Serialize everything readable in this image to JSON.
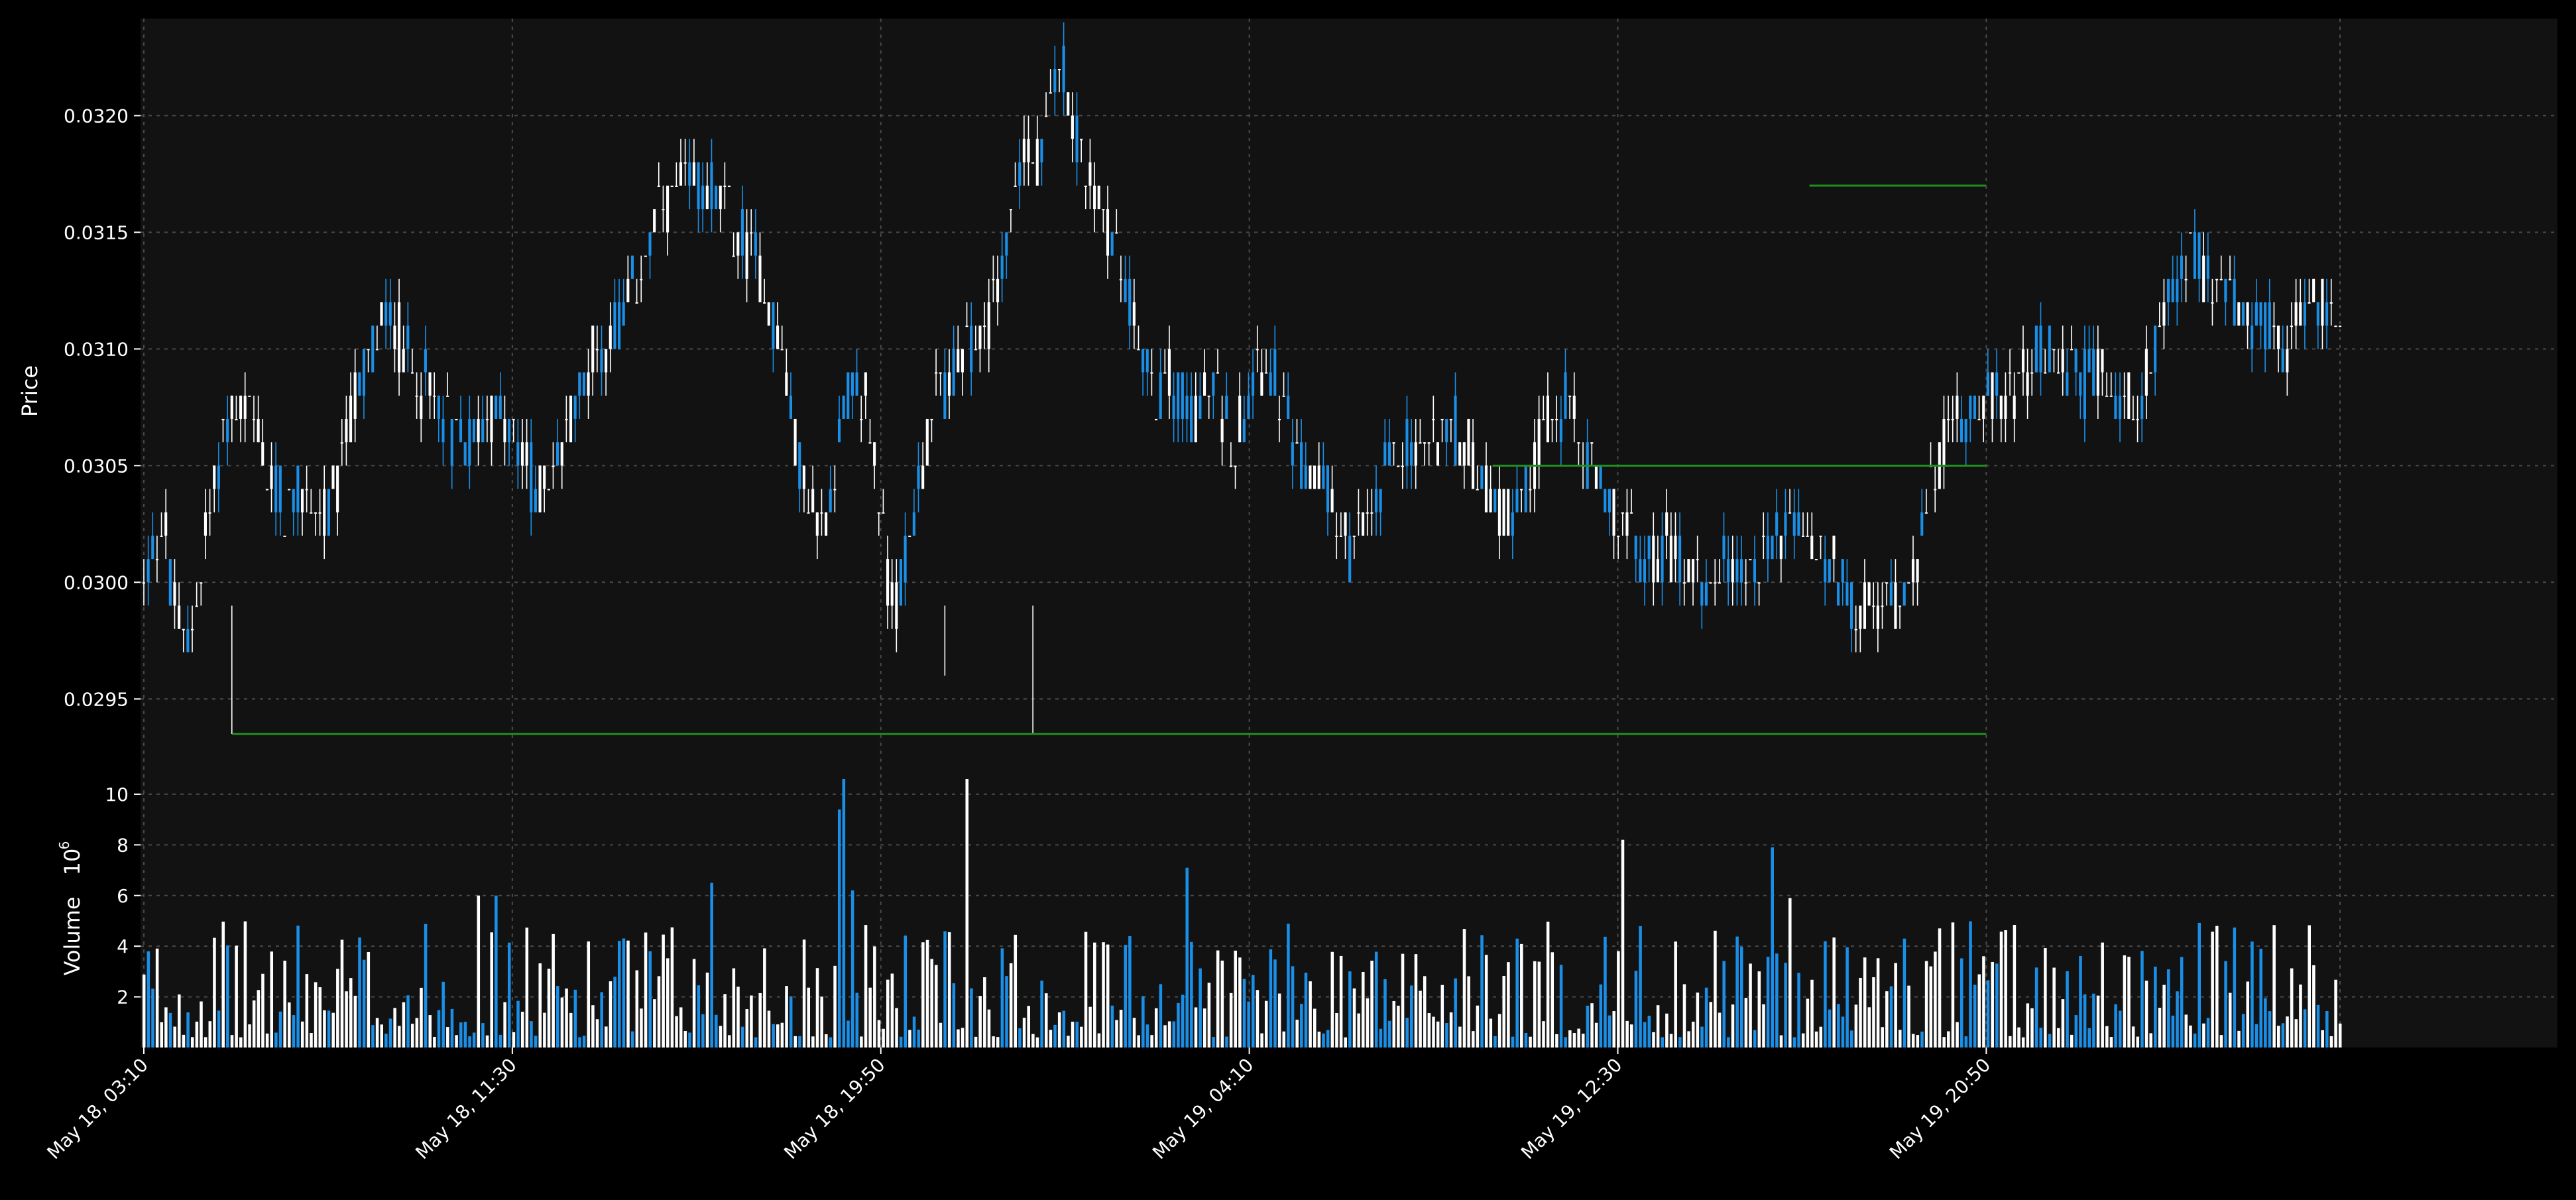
{
  "colors": {
    "background": "#000000",
    "panel": "#121212",
    "up": "#ffffff",
    "down": "#1a8fe8",
    "level_line": "#1f8f1f",
    "grid": "#4a4a4a",
    "text": "#ffffff"
  },
  "chart_data": {
    "type": "ohlc-candlestick-with-volume",
    "ylabel_price": "Price",
    "ylabel_volume": "Volume",
    "volume_exponent": "10",
    "volume_exponent_power": "6",
    "grid": true,
    "x_range": [
      "May 18, 03:10",
      "May 19, 20:50"
    ],
    "bar_interval_minutes": 5,
    "bar_count": 500,
    "price_ylim": [
      0.029157,
      0.032416
    ],
    "volume_ylim": [
      0,
      10.6
    ],
    "x_ticks": [
      "May 18, 03:10",
      "May 18, 11:30",
      "May 18, 19:50",
      "May 19, 04:10",
      "May 19, 12:30",
      "May 19, 20:50"
    ],
    "price_ticks": [
      "0.0295",
      "0.0300",
      "0.0305",
      "0.0310",
      "0.0315",
      "0.0320"
    ],
    "price_tick_values": [
      0.0295,
      0.03,
      0.0305,
      0.031,
      0.0315,
      0.032
    ],
    "volume_ticks": [
      "2",
      "4",
      "6",
      "8",
      "10"
    ],
    "volume_tick_values": [
      2,
      4,
      6,
      8,
      10
    ],
    "price_path": [
      [
        0,
        0.03
      ],
      [
        10,
        0.0303
      ],
      [
        14,
        0.0299
      ],
      [
        20,
        0.0297
      ],
      [
        24,
        0.02985
      ],
      [
        30,
        0.0302
      ],
      [
        40,
        0.0307
      ],
      [
        50,
        0.0308
      ],
      [
        60,
        0.03045
      ],
      [
        70,
        0.0303
      ],
      [
        80,
        0.0304
      ],
      [
        90,
        0.03025
      ],
      [
        100,
        0.0307
      ],
      [
        110,
        0.031
      ],
      [
        120,
        0.03115
      ],
      [
        130,
        0.0309
      ],
      [
        140,
        0.0308
      ],
      [
        150,
        0.03065
      ],
      [
        160,
        0.0306
      ],
      [
        170,
        0.03075
      ],
      [
        180,
        0.0306
      ],
      [
        190,
        0.0304
      ],
      [
        200,
        0.0305
      ],
      [
        210,
        0.0308
      ],
      [
        220,
        0.031
      ],
      [
        230,
        0.0311
      ],
      [
        240,
        0.0313
      ],
      [
        250,
        0.0316
      ],
      [
        260,
        0.03165
      ],
      [
        270,
        0.0317
      ],
      [
        280,
        0.03165
      ],
      [
        290,
        0.03145
      ],
      [
        300,
        0.03135
      ],
      [
        310,
        0.03095
      ],
      [
        320,
        0.0304
      ],
      [
        330,
        0.0302
      ],
      [
        335,
        0.0305
      ],
      [
        340,
        0.03075
      ],
      [
        350,
        0.0308
      ],
      [
        357,
        0.0304
      ],
      [
        362,
        0.0299
      ],
      [
        368,
        0.03
      ],
      [
        375,
        0.0304
      ],
      [
        385,
        0.0308
      ],
      [
        395,
        0.0309
      ],
      [
        405,
        0.031
      ],
      [
        415,
        0.0313
      ],
      [
        425,
        0.0318
      ],
      [
        435,
        0.03175
      ],
      [
        445,
        0.0323
      ],
      [
        450,
        0.03205
      ],
      [
        460,
        0.0317
      ],
      [
        470,
        0.0315
      ],
      [
        480,
        0.03115
      ],
      [
        490,
        0.0308
      ],
      [
        500,
        0.03085
      ],
      [
        510,
        0.03075
      ],
      [
        520,
        0.0308
      ],
      [
        530,
        0.0306
      ],
      [
        540,
        0.031
      ],
      [
        550,
        0.03085
      ],
      [
        560,
        0.0305
      ],
      [
        570,
        0.03045
      ],
      [
        580,
        0.0303
      ],
      [
        585,
        0.0301
      ],
      [
        590,
        0.0302
      ],
      [
        600,
        0.0304
      ],
      [
        610,
        0.0306
      ],
      [
        620,
        0.03055
      ],
      [
        630,
        0.0307
      ],
      [
        640,
        0.0306
      ],
      [
        650,
        0.0304
      ],
      [
        660,
        0.0303
      ],
      [
        670,
        0.0304
      ],
      [
        680,
        0.03065
      ],
      [
        690,
        0.03075
      ],
      [
        700,
        0.03055
      ],
      [
        710,
        0.03035
      ],
      [
        720,
        0.0302
      ],
      [
        730,
        0.0301
      ],
      [
        740,
        0.03015
      ],
      [
        750,
        0.03005
      ],
      [
        760,
        0.03
      ],
      [
        770,
        0.0301
      ],
      [
        780,
        0.03
      ],
      [
        790,
        0.0302
      ],
      [
        800,
        0.03025
      ],
      [
        810,
        0.03015
      ],
      [
        820,
        0.03005
      ],
      [
        830,
        0.0299
      ],
      [
        840,
        0.02985
      ],
      [
        850,
        0.02995
      ],
      [
        860,
        0.0301
      ],
      [
        870,
        0.0305
      ],
      [
        880,
        0.0307
      ],
      [
        890,
        0.0308
      ],
      [
        900,
        0.03075
      ],
      [
        910,
        0.0309
      ],
      [
        920,
        0.031
      ],
      [
        930,
        0.0309
      ],
      [
        940,
        0.03085
      ],
      [
        950,
        0.0309
      ],
      [
        960,
        0.03075
      ],
      [
        970,
        0.0308
      ],
      [
        980,
        0.0311
      ],
      [
        990,
        0.0314
      ],
      [
        1000,
        0.03135
      ],
      [
        1010,
        0.03125
      ],
      [
        1020,
        0.0311
      ],
      [
        1030,
        0.03105
      ],
      [
        1040,
        0.031
      ],
      [
        1050,
        0.0312
      ],
      [
        1060,
        0.03115
      ],
      [
        1066,
        0.03115
      ]
    ],
    "volume_spikes": [
      [
        338,
        9.4
      ],
      [
        340,
        10.6
      ],
      [
        343,
        6.2
      ],
      [
        400,
        10.6
      ],
      [
        506,
        7.1
      ],
      [
        718,
        8.2
      ],
      [
        790,
        7.9
      ],
      [
        791,
        7.9
      ],
      [
        276,
        6.5
      ],
      [
        170,
        6.0
      ],
      [
        163,
        6.0
      ],
      [
        800,
        5.9
      ]
    ],
    "levels": [
      {
        "price": 0.02935,
        "x_start": "May 18, 05:10",
        "x_end": "May 19, 20:50"
      },
      {
        "price": 0.0305,
        "x_start": "May 19, 09:40",
        "x_end": "May 19, 20:50"
      },
      {
        "price": 0.0317,
        "x_start": "May 19, 16:50",
        "x_end": "May 19, 20:50"
      }
    ]
  }
}
